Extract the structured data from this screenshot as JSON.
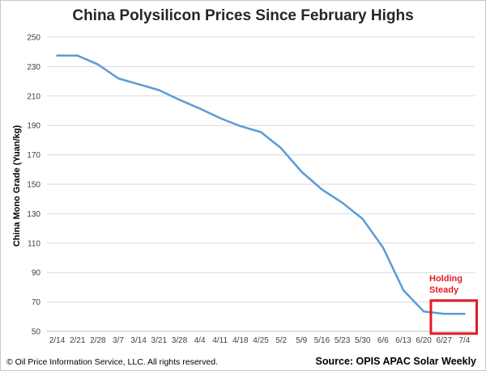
{
  "chart_data": {
    "type": "line",
    "title": "China Polysilicon Prices Since February Highs",
    "ylabel": "China Mono Grade (Yuan/kg)",
    "xlabel": "",
    "categories": [
      "2/14",
      "2/21",
      "2/28",
      "3/7",
      "3/14",
      "3/21",
      "3/28",
      "4/4",
      "4/11",
      "4/18",
      "4/25",
      "5/2",
      "5/9",
      "5/16",
      "5/23",
      "5/30",
      "6/6",
      "6/13",
      "6/20",
      "6/27",
      "7/4"
    ],
    "series": [
      {
        "values": [
          237.5,
          237.5,
          231.5,
          222,
          218,
          214,
          207.5,
          201.5,
          195,
          189.5,
          185.5,
          174.5,
          158.5,
          146.5,
          137.5,
          126.5,
          107,
          78,
          63.5,
          62,
          62
        ]
      }
    ],
    "ylim": [
      50,
      250
    ],
    "yticks": [
      50,
      70,
      90,
      110,
      130,
      150,
      170,
      190,
      210,
      230,
      250
    ],
    "grid": true,
    "legend": "none",
    "annotation": {
      "text_line1": "Holding",
      "text_line2": "Steady"
    },
    "colors": {
      "line": "#5b9bd5",
      "highlight": "#e31b23",
      "grid": "#d9d9d9"
    }
  },
  "footer": {
    "copyright": "© Oil Price Information Service, LLC.  All rights reserved.",
    "source": "Source: OPIS APAC Solar Weekly"
  }
}
